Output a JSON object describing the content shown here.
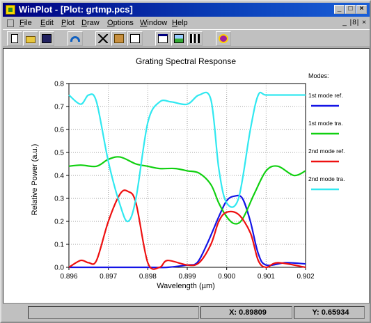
{
  "window": {
    "title": "WinPlot - [Plot: grtmp.pcs]",
    "controls": {
      "minimize": "_",
      "maximize": "□",
      "close": "×"
    },
    "mdi_controls": "_ |8| ×"
  },
  "menu": {
    "items": [
      "File",
      "Edit",
      "Plot",
      "Draw",
      "Options",
      "Window",
      "Help"
    ]
  },
  "toolbar": {
    "buttons": [
      {
        "name": "new-icon"
      },
      {
        "name": "open-icon"
      },
      {
        "name": "save-icon"
      },
      {
        "name": "undo-icon"
      },
      {
        "name": "cut-icon"
      },
      {
        "name": "paste-icon"
      },
      {
        "name": "edit-icon"
      },
      {
        "name": "window-icon"
      },
      {
        "name": "image-icon"
      },
      {
        "name": "chart-icon"
      },
      {
        "name": "about-icon"
      }
    ]
  },
  "status": {
    "x_readout": "X: 0.89809",
    "y_readout": "Y: 0.65934"
  },
  "colors": {
    "blue": "#1414e6",
    "green": "#10d010",
    "red": "#ee1010",
    "cyan": "#30e8f0",
    "title_bar": "#000080"
  },
  "chart_data": {
    "type": "line",
    "title": "Grating Spectral Response",
    "xlabel": "Wavelength (µm)",
    "ylabel": "Relative Power (a.u.)",
    "xlim": [
      0.896,
      0.902
    ],
    "ylim": [
      0.0,
      0.8
    ],
    "xticks": [
      "0.896",
      "0.897",
      "0.898",
      "0.899",
      "0.900",
      "0.901",
      "0.902"
    ],
    "yticks": [
      "0.0",
      "0.1",
      "0.2",
      "0.3",
      "0.4",
      "0.5",
      "0.6",
      "0.7",
      "0.8"
    ],
    "grid": true,
    "legend_title": "Modes:",
    "legend_position": "right",
    "series": [
      {
        "name": "1st mode ref.",
        "color": "#1414e6",
        "x": [
          0.896,
          0.8965,
          0.897,
          0.8975,
          0.898,
          0.8985,
          0.899,
          0.89925,
          0.8995,
          0.8998,
          0.9,
          0.9002,
          0.9004,
          0.9006,
          0.9008,
          0.901,
          0.9015,
          0.902
        ],
        "y": [
          0.0,
          0.0,
          0.0,
          0.0,
          0.0,
          0.0,
          0.01,
          0.02,
          0.1,
          0.22,
          0.29,
          0.31,
          0.3,
          0.2,
          0.06,
          0.01,
          0.02,
          0.015
        ]
      },
      {
        "name": "1st mode tra.",
        "color": "#10d010",
        "x": [
          0.896,
          0.8963,
          0.8967,
          0.897,
          0.8973,
          0.8977,
          0.898,
          0.8983,
          0.8987,
          0.899,
          0.8993,
          0.8996,
          0.8998,
          0.9,
          0.9002,
          0.9004,
          0.9007,
          0.901,
          0.9013,
          0.9017,
          0.902
        ],
        "y": [
          0.44,
          0.445,
          0.44,
          0.47,
          0.48,
          0.45,
          0.44,
          0.43,
          0.43,
          0.42,
          0.41,
          0.36,
          0.28,
          0.22,
          0.19,
          0.21,
          0.32,
          0.42,
          0.44,
          0.4,
          0.42
        ]
      },
      {
        "name": "2nd mode ref.",
        "color": "#ee1010",
        "x": [
          0.896,
          0.8963,
          0.8965,
          0.8967,
          0.897,
          0.8973,
          0.8975,
          0.8977,
          0.898,
          0.8983,
          0.8985,
          0.899,
          0.8993,
          0.8996,
          0.8998,
          0.9,
          0.9003,
          0.9006,
          0.9008,
          0.901,
          0.9013,
          0.902
        ],
        "y": [
          0.0,
          0.03,
          0.02,
          0.03,
          0.2,
          0.32,
          0.33,
          0.28,
          0.02,
          0.0,
          0.03,
          0.01,
          0.02,
          0.1,
          0.2,
          0.24,
          0.23,
          0.15,
          0.03,
          0.0,
          0.02,
          0.0
        ]
      },
      {
        "name": "2nd mode tra.",
        "color": "#30e8f0",
        "x": [
          0.896,
          0.8963,
          0.8965,
          0.8967,
          0.897,
          0.8973,
          0.8975,
          0.8977,
          0.898,
          0.8983,
          0.8986,
          0.899,
          0.8993,
          0.8996,
          0.8998,
          0.9,
          0.9003,
          0.9006,
          0.9008,
          0.901,
          0.9015,
          0.902
        ],
        "y": [
          0.75,
          0.71,
          0.75,
          0.72,
          0.46,
          0.27,
          0.2,
          0.3,
          0.63,
          0.72,
          0.72,
          0.71,
          0.75,
          0.73,
          0.43,
          0.28,
          0.3,
          0.6,
          0.75,
          0.75,
          0.75,
          0.75
        ]
      }
    ]
  }
}
